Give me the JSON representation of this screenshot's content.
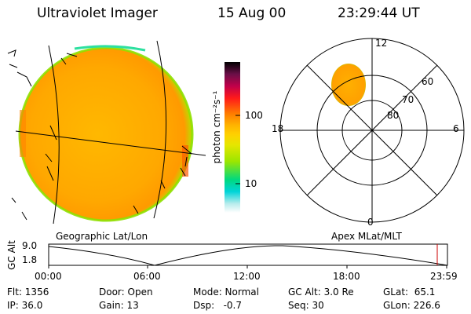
{
  "header": {
    "instrument": "Ultraviolet Imager",
    "date": "15 Aug 00",
    "time": "23:29:44 UT"
  },
  "colorbar": {
    "label": "photon cm⁻²s⁻¹",
    "ticks": [
      "100",
      "10"
    ],
    "colors": [
      "#000000",
      "#6a0f47",
      "#c0004a",
      "#ff1a1a",
      "#ff7a00",
      "#ffb400",
      "#ffd000",
      "#e6e600",
      "#9be600",
      "#00d97e",
      "#00d4d8",
      "#b8ecec",
      "#ffffff"
    ]
  },
  "panels": {
    "left_caption": "Geographic Lat/Lon",
    "right_caption": "Apex MLat/MLT"
  },
  "polar": {
    "mlt_labels": [
      "12",
      "18",
      "6",
      "0"
    ],
    "lat_labels": [
      "60",
      "70",
      "80"
    ]
  },
  "altplot": {
    "ylabel": "GC Alt",
    "yticks": [
      "9.0",
      "1.8"
    ],
    "xticks": [
      "00:00",
      "06:00",
      "12:00",
      "18:00",
      "23:59"
    ]
  },
  "status": {
    "flt": "Flt: 1356",
    "ip": "IP: 36.0",
    "door": "Door: Open",
    "gain": "Gain: 13",
    "mode": "Mode: Normal",
    "dsp": "Dsp:   -0.7",
    "gcalt": "GC Alt: 3.0 Re",
    "seq": "Seq: 30",
    "glat": "GLat:  65.1",
    "glon": "GLon: 226.6"
  },
  "colors": {
    "disk_fill": "#ffb000",
    "disk_rim": "#9be600",
    "accent_red": "#cc0000"
  }
}
